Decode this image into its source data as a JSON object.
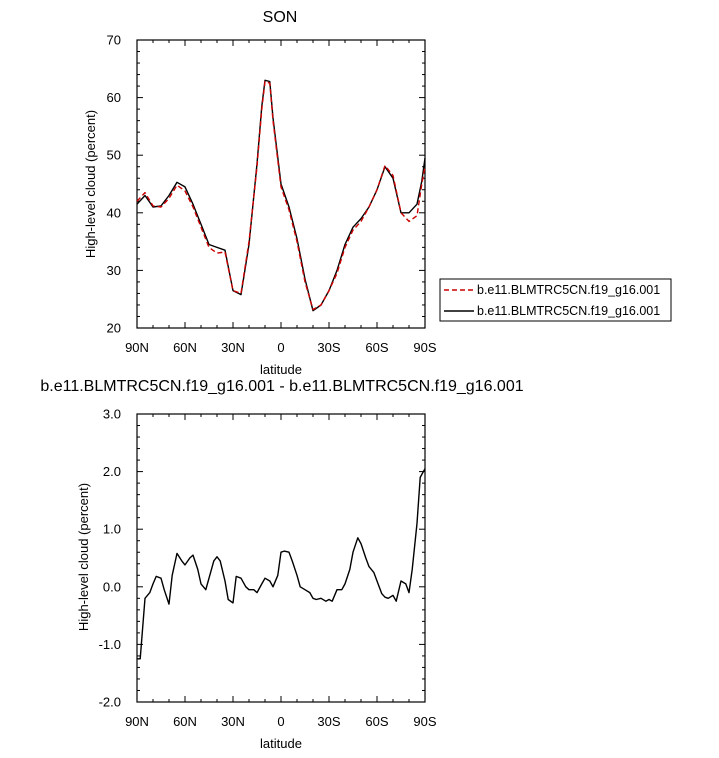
{
  "chart_data": [
    {
      "type": "line",
      "title": "SON",
      "xlabel": "latitude",
      "ylabel": "High-level cloud (percent)",
      "xlim": [
        -90,
        90
      ],
      "ylim": [
        20,
        70
      ],
      "x_ticks": [
        -90,
        -60,
        -30,
        0,
        30,
        60,
        90
      ],
      "x_tick_labels": [
        "90N",
        "60N",
        "30N",
        "0",
        "30S",
        "60S",
        "90S"
      ],
      "y_ticks": [
        20,
        30,
        40,
        50,
        60,
        70
      ],
      "y_tick_labels": [
        "20",
        "30",
        "40",
        "50",
        "60",
        "70"
      ],
      "legend_position": "right",
      "series": [
        {
          "name": "b.e11.BLMTRC5CN.f19_g16.001",
          "color": "#cc0000",
          "dash": "dashed",
          "x": [
            -90,
            -85,
            -80,
            -75,
            -70,
            -65,
            -60,
            -55,
            -50,
            -45,
            -40,
            -35,
            -30,
            -25,
            -20,
            -15,
            -12,
            -10,
            -7,
            -5,
            0,
            5,
            10,
            15,
            20,
            25,
            30,
            35,
            40,
            45,
            50,
            55,
            60,
            65,
            70,
            75,
            80,
            85,
            88,
            90
          ],
          "y": [
            42,
            43.5,
            41.2,
            41.0,
            42.5,
            44.8,
            43.8,
            41.0,
            37.5,
            34.0,
            33.0,
            33.2,
            26.5,
            26.0,
            35.0,
            48.0,
            58.0,
            62.8,
            62.5,
            56.0,
            44.5,
            40.5,
            35.0,
            28.0,
            23.2,
            24.0,
            26.5,
            29.5,
            34.0,
            37.0,
            38.5,
            41.0,
            44.0,
            48.2,
            46.5,
            40.0,
            38.5,
            39.5,
            45.0,
            48.0
          ]
        },
        {
          "name": "b.e11.BLMTRC5CN.f19_g16.001",
          "color": "#000000",
          "dash": "solid",
          "x": [
            -90,
            -85,
            -80,
            -75,
            -70,
            -65,
            -60,
            -55,
            -50,
            -45,
            -40,
            -35,
            -30,
            -25,
            -20,
            -15,
            -12,
            -10,
            -7,
            -5,
            0,
            5,
            10,
            15,
            20,
            25,
            30,
            35,
            40,
            45,
            50,
            55,
            60,
            65,
            70,
            75,
            80,
            85,
            88,
            90
          ],
          "y": [
            41.5,
            43.0,
            41.0,
            41.2,
            43.0,
            45.3,
            44.5,
            41.5,
            38.0,
            34.5,
            34.0,
            33.5,
            26.5,
            25.8,
            34.5,
            48.5,
            58.5,
            63.0,
            62.8,
            56.5,
            45.0,
            41.0,
            35.5,
            28.5,
            23.0,
            24.0,
            26.5,
            30.0,
            34.5,
            37.5,
            39.0,
            41.0,
            44.0,
            48.0,
            46.0,
            40.0,
            40.0,
            41.5,
            45.5,
            49.5
          ]
        }
      ]
    },
    {
      "type": "line",
      "title": "b.e11.BLMTRC5CN.f19_g16.001 - b.e11.BLMTRC5CN.f19_g16.001",
      "xlabel": "latitude",
      "ylabel": "High-level cloud (percent)",
      "xlim": [
        -90,
        90
      ],
      "ylim": [
        -2.0,
        3.0
      ],
      "x_ticks": [
        -90,
        -60,
        -30,
        0,
        30,
        60,
        90
      ],
      "x_tick_labels": [
        "90N",
        "60N",
        "30N",
        "0",
        "30S",
        "60S",
        "90S"
      ],
      "y_ticks": [
        -2.0,
        -1.0,
        0.0,
        1.0,
        2.0,
        3.0
      ],
      "y_tick_labels": [
        "-2.0",
        "-1.0",
        "0.0",
        "1.0",
        "2.0",
        "3.0"
      ],
      "series": [
        {
          "color": "#000000",
          "dash": "solid",
          "x": [
            -90,
            -88,
            -85,
            -82,
            -80,
            -78,
            -75,
            -73,
            -70,
            -68,
            -65,
            -62,
            -60,
            -57,
            -55,
            -52,
            -50,
            -47,
            -45,
            -42,
            -40,
            -38,
            -35,
            -33,
            -30,
            -28,
            -25,
            -22,
            -20,
            -17,
            -15,
            -12,
            -10,
            -7,
            -5,
            -2,
            0,
            2,
            5,
            7,
            10,
            12,
            15,
            18,
            20,
            22,
            25,
            28,
            30,
            32,
            35,
            38,
            40,
            43,
            45,
            48,
            50,
            53,
            55,
            58,
            60,
            63,
            65,
            67,
            70,
            72,
            75,
            78,
            80,
            82,
            85,
            87,
            90
          ],
          "y": [
            -1.25,
            -1.25,
            -0.2,
            -0.1,
            0.05,
            0.18,
            0.15,
            -0.05,
            -0.3,
            0.2,
            0.58,
            0.45,
            0.38,
            0.5,
            0.55,
            0.3,
            0.05,
            -0.05,
            0.15,
            0.45,
            0.52,
            0.45,
            0.1,
            -0.22,
            -0.28,
            0.18,
            0.15,
            0.0,
            -0.05,
            -0.05,
            -0.1,
            0.05,
            0.15,
            0.1,
            0.0,
            0.2,
            0.6,
            0.62,
            0.6,
            0.45,
            0.2,
            0.0,
            -0.05,
            -0.1,
            -0.2,
            -0.22,
            -0.2,
            -0.25,
            -0.22,
            -0.25,
            -0.05,
            -0.05,
            0.05,
            0.3,
            0.6,
            0.85,
            0.75,
            0.5,
            0.35,
            0.25,
            0.1,
            -0.12,
            -0.18,
            -0.2,
            -0.15,
            -0.25,
            0.1,
            0.05,
            -0.1,
            0.3,
            1.1,
            1.9,
            2.05
          ]
        }
      ]
    }
  ]
}
